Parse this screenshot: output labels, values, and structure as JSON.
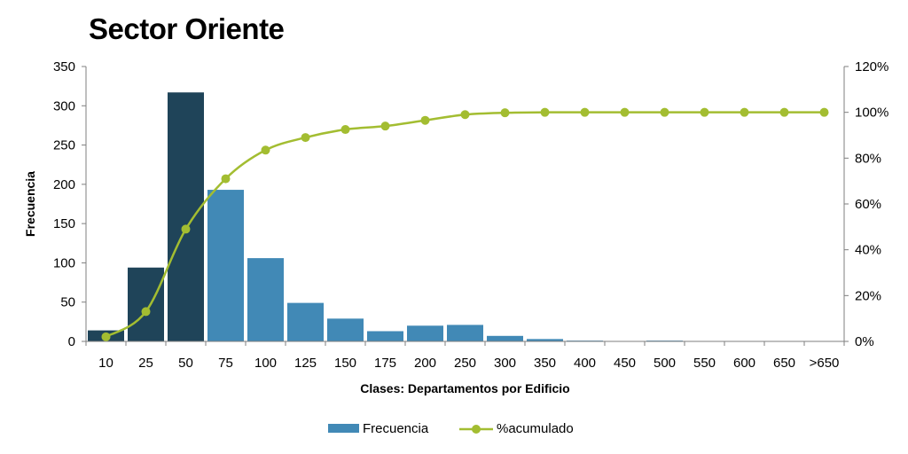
{
  "title": "Sector Oriente",
  "colors": {
    "bar_dark": "#1f4459",
    "bar_light": "#4189b6",
    "line": "#a3bd31",
    "axis": "#7f7f7f"
  },
  "chart_data": {
    "type": "bar",
    "categories": [
      "10",
      "25",
      "50",
      "75",
      "100",
      "125",
      "150",
      "175",
      "200",
      "250",
      "300",
      "350",
      "400",
      "450",
      "500",
      "550",
      "600",
      "650",
      ">650"
    ],
    "series": [
      {
        "name": "Frecuencia",
        "type": "bar",
        "axis": "left",
        "values": [
          14,
          94,
          317,
          193,
          106,
          49,
          29,
          13,
          20,
          21,
          7,
          3,
          1,
          0,
          1,
          0,
          0,
          0,
          0
        ],
        "dark_categories": [
          "10",
          "25",
          "50"
        ]
      },
      {
        "name": "%acumulado",
        "type": "line",
        "axis": "right",
        "smooth": true,
        "marker": "circle",
        "values": [
          2,
          13,
          49,
          71,
          83.5,
          89,
          92.5,
          94,
          96.5,
          99,
          99.8,
          100,
          100,
          100,
          100,
          100,
          100,
          100,
          100
        ]
      }
    ],
    "xlabel": "Clases: Departamentos por Edificio",
    "ylabel": "Frecuencia",
    "ylim": [
      0,
      350
    ],
    "yticks": [
      "0",
      "50",
      "100",
      "150",
      "200",
      "250",
      "300",
      "350"
    ],
    "y2lim": [
      0,
      120
    ],
    "y2ticks": [
      "0%",
      "20%",
      "40%",
      "60%",
      "80%",
      "100%",
      "120%"
    ],
    "grid": false,
    "legend": {
      "position": "bottom-center",
      "entries": [
        "Frecuencia",
        "%acumulado"
      ]
    }
  }
}
